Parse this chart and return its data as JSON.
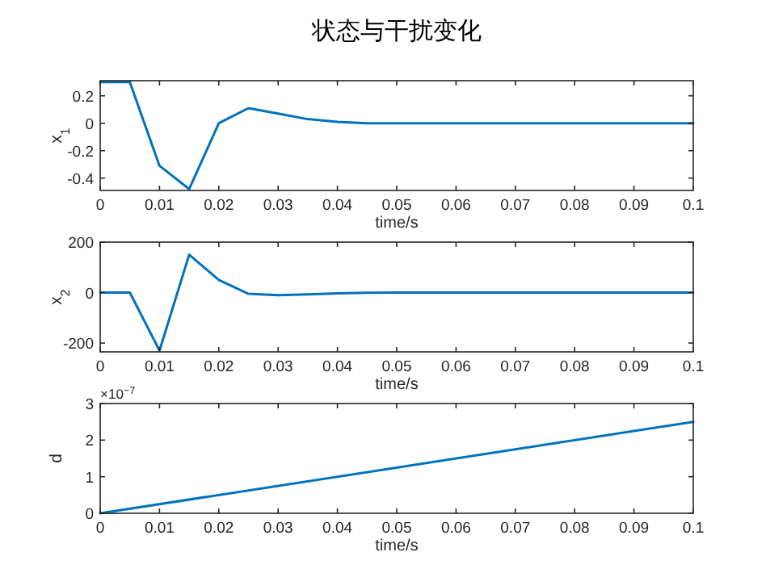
{
  "chart_data": [
    {
      "type": "line",
      "title": "状态与干扰变化",
      "xlabel": "time/s",
      "ylabel": "x$_{1}$",
      "xlim": [
        0,
        0.1
      ],
      "ylim": [
        -0.49,
        0.31
      ],
      "xticks": [
        0,
        0.01,
        0.02,
        0.03,
        0.04,
        0.05,
        0.06,
        0.07,
        0.08,
        0.09,
        0.1
      ],
      "yticks": [
        -0.4,
        -0.2,
        0,
        0.2
      ],
      "grid": false,
      "x": [
        0,
        0.005,
        0.01,
        0.015,
        0.02,
        0.025,
        0.03,
        0.035,
        0.04,
        0.045,
        0.05,
        0.055,
        0.06,
        0.065,
        0.07,
        0.075,
        0.08,
        0.085,
        0.09,
        0.095,
        0.1
      ],
      "series": [
        {
          "color": "#0072bd",
          "values": [
            0.3,
            0.3,
            -0.31,
            -0.48,
            0,
            0.11,
            0.07,
            0.03,
            0.01,
            0,
            0,
            0,
            0,
            0,
            0,
            0,
            0,
            0,
            0,
            0,
            0
          ]
        }
      ]
    },
    {
      "type": "line",
      "xlabel": "time/s",
      "ylabel": "x$_{2}$",
      "xlim": [
        0,
        0.1
      ],
      "ylim": [
        -235,
        200
      ],
      "xticks": [
        0,
        0.01,
        0.02,
        0.03,
        0.04,
        0.05,
        0.06,
        0.07,
        0.08,
        0.09,
        0.1
      ],
      "yticks": [
        -200,
        0,
        200
      ],
      "grid": false,
      "x": [
        0,
        0.005,
        0.01,
        0.015,
        0.02,
        0.025,
        0.03,
        0.035,
        0.04,
        0.045,
        0.05,
        0.055,
        0.06,
        0.065,
        0.07,
        0.075,
        0.08,
        0.085,
        0.09,
        0.095,
        0.1
      ],
      "series": [
        {
          "color": "#0072bd",
          "values": [
            0,
            0,
            -230,
            150,
            50,
            -5,
            -10,
            -7,
            -3,
            -1,
            0,
            0,
            0,
            0,
            0,
            0,
            0,
            0,
            0,
            0,
            0
          ]
        }
      ]
    },
    {
      "type": "line",
      "xlabel": "time/s",
      "ylabel": "d",
      "xlim": [
        0,
        0.1
      ],
      "ylim": [
        0,
        3
      ],
      "xticks": [
        0,
        0.01,
        0.02,
        0.03,
        0.04,
        0.05,
        0.06,
        0.07,
        0.08,
        0.09,
        0.1
      ],
      "yticks": [
        0,
        1,
        2,
        3
      ],
      "grid": false,
      "annotations": [
        "×10$^{−7}$"
      ],
      "x": [
        0,
        0.1
      ],
      "series": [
        {
          "color": "#0072bd",
          "values": [
            0,
            2.5
          ]
        }
      ]
    }
  ]
}
